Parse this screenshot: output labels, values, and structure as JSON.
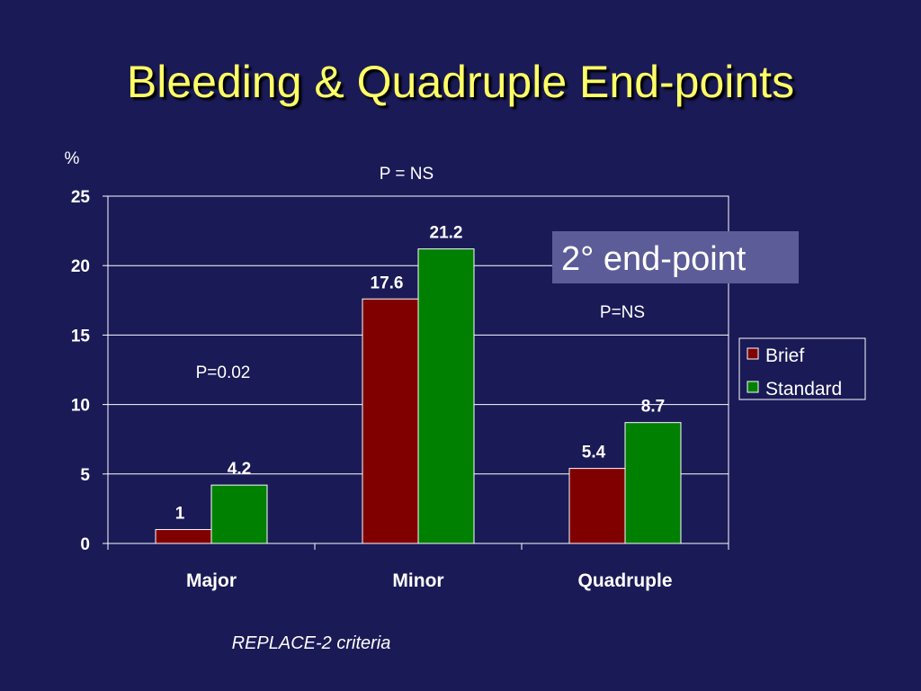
{
  "slide": {
    "title": "Bleeding & Quadruple End-points",
    "footnote": "REPLACE-2 criteria",
    "callout": "2° end-point"
  },
  "colors": {
    "background": "#1a1a57",
    "title": "#ffff66",
    "brief": "#800000",
    "standard": "#008000",
    "callout_bg": "#5c5c99"
  },
  "chart_data": {
    "type": "bar",
    "title": "",
    "ylabel": "%",
    "xlabel": "",
    "ylim": [
      0,
      25
    ],
    "yticks": [
      0,
      5,
      10,
      15,
      20,
      25
    ],
    "categories": [
      "Major",
      "Minor",
      "Quadruple"
    ],
    "series": [
      {
        "name": "Brief",
        "values": [
          1,
          17.6,
          5.4
        ],
        "labels": [
          "1",
          "17.6",
          "5.4"
        ]
      },
      {
        "name": "Standard",
        "values": [
          4.2,
          21.2,
          8.7
        ],
        "labels": [
          "4.2",
          "21.2",
          "8.7"
        ]
      }
    ],
    "grid": true,
    "legend": "right",
    "annotations": [
      "P=0.02",
      "P = NS",
      "P=NS"
    ]
  }
}
